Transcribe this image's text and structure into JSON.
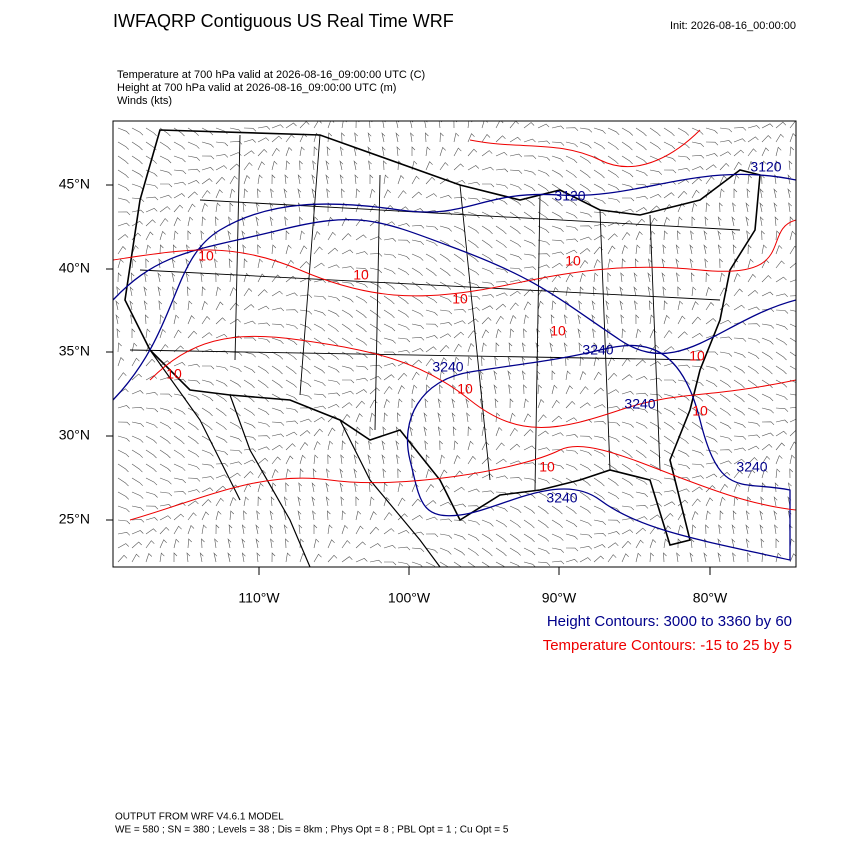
{
  "header": {
    "title": "IWFAQRP Contiguous US Real Time WRF",
    "init": "Init: 2026-08-16_00:00:00",
    "fields": [
      "Temperature at 700 hPa valid at 2026-08-16_09:00:00 UTC   (C)",
      "Height at 700 hPa valid at 2026-08-16_09:00:00 UTC   (m)",
      "Winds   (kts)"
    ]
  },
  "map": {
    "lat_labels": [
      "45°N",
      "40°N",
      "35°N",
      "30°N",
      "25°N"
    ],
    "lon_labels": [
      "110°W",
      "100°W",
      "90°W",
      "80°W"
    ],
    "height_labels": [
      "3120",
      "3120",
      "3240",
      "3240",
      "3240",
      "3240",
      "3240"
    ],
    "temperature_labels": [
      "10",
      "10",
      "10",
      "10",
      "10",
      "10",
      "10",
      "10",
      "10",
      "10"
    ]
  },
  "legend": {
    "height": "Height Contours: 3000 to 3360 by 60",
    "temperature": "Temperature Contours: -15 to 25 by 5"
  },
  "footer": [
    "OUTPUT FROM WRF V4.6.1 MODEL",
    "WE = 580 ; SN = 380 ; Levels = 38 ; Dis = 8km ; Phys Opt = 8 ; PBL Opt = 1 ; Cu Opt = 5"
  ]
}
